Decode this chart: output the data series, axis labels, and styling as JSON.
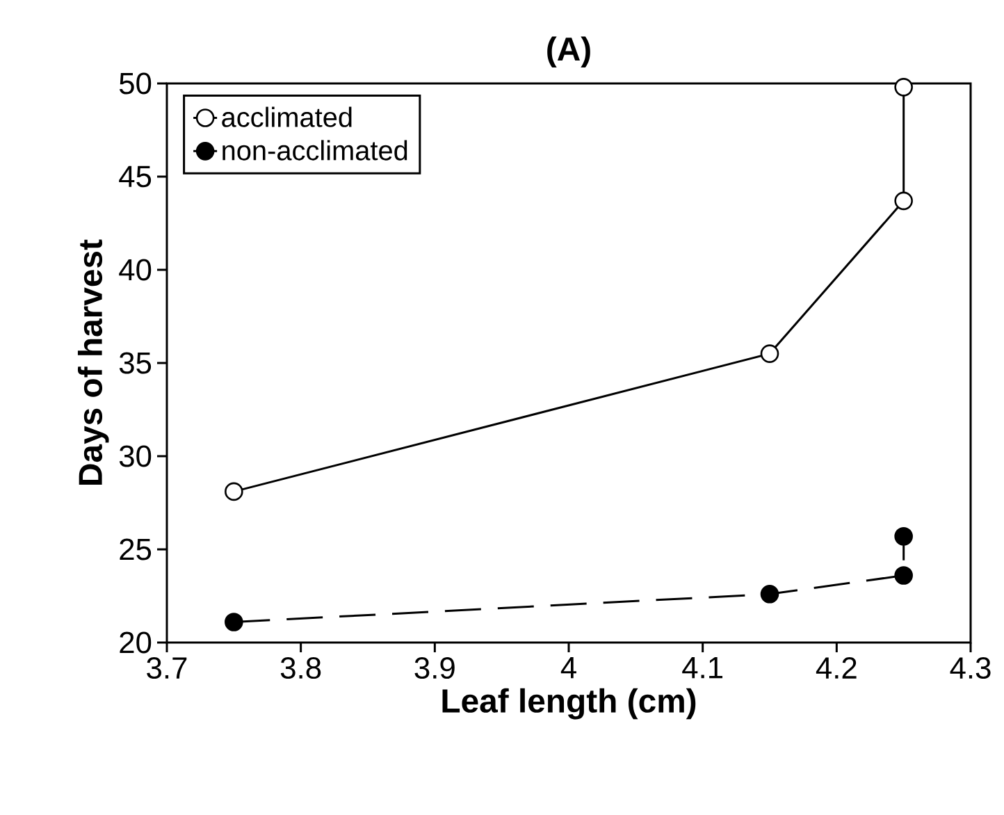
{
  "chart_data": {
    "type": "line",
    "title": "(A)",
    "xlabel": "Leaf   length   (cm)",
    "ylabel": "Days    of    harvest",
    "xlim": [
      3.7,
      4.3
    ],
    "xticks": [
      3.7,
      3.8,
      3.9,
      4,
      4.1,
      4.2,
      4.3
    ],
    "ylim": [
      20,
      50
    ],
    "yticks": [
      20,
      25,
      30,
      35,
      40,
      45,
      50
    ],
    "legend": "top left",
    "marker": "circle",
    "series": [
      {
        "name": "acclimated",
        "color": "#000000",
        "line_style": "solid",
        "x": [
          3.75,
          4.15,
          4.25,
          4.25
        ],
        "values": [
          28.1,
          35.5,
          43.7,
          49.8
        ]
      },
      {
        "name": "non-acclimated",
        "color": "#000000",
        "line_style": "dashed",
        "x": [
          3.75,
          4.15,
          4.25,
          4.25
        ],
        "values": [
          21.1,
          22.6,
          23.6,
          25.7
        ]
      }
    ]
  }
}
